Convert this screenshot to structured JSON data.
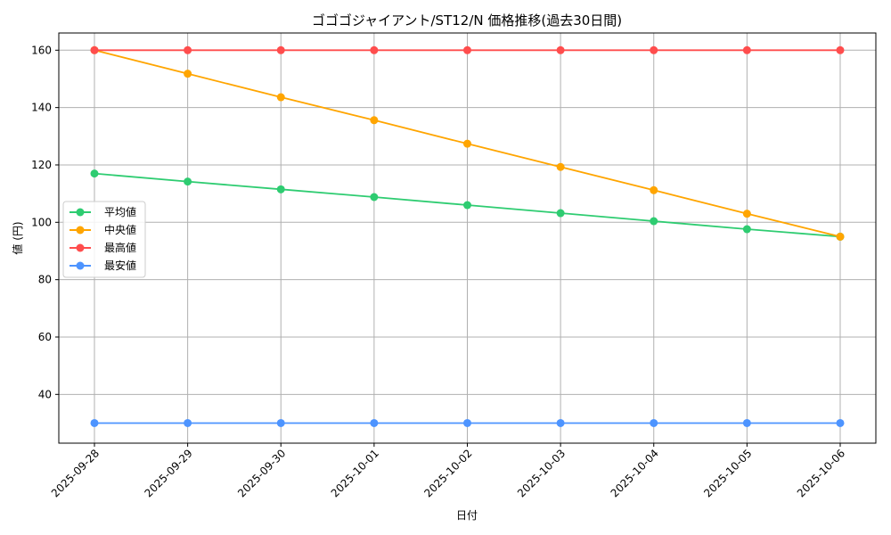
{
  "chart_data": {
    "type": "line",
    "title": "ゴゴゴジャイアント/ST12/N 価格推移(過去30日間)",
    "xlabel": "日付",
    "ylabel": "値 (円)",
    "categories": [
      "2025-09-28",
      "2025-09-29",
      "2025-09-30",
      "2025-10-01",
      "2025-10-02",
      "2025-10-03",
      "2025-10-04",
      "2025-10-05",
      "2025-10-06"
    ],
    "ylim": [
      23,
      166
    ],
    "yticks": [
      40,
      60,
      80,
      100,
      120,
      140,
      160
    ],
    "grid": true,
    "legend_position": "center-left",
    "series": [
      {
        "name": "平均値",
        "color": "#2ecc71",
        "values": [
          117,
          114.2,
          111.5,
          108.8,
          106,
          103.2,
          100.4,
          97.6,
          95
        ]
      },
      {
        "name": "中央値",
        "color": "#ffa500",
        "values": [
          160,
          151.8,
          143.6,
          135.6,
          127.4,
          119.3,
          111.2,
          103,
          95
        ]
      },
      {
        "name": "最高値",
        "color": "#ff4d4d",
        "values": [
          160,
          160,
          160,
          160,
          160,
          160,
          160,
          160,
          160
        ]
      },
      {
        "name": "最安値",
        "color": "#4d94ff",
        "values": [
          30,
          30,
          30,
          30,
          30,
          30,
          30,
          30,
          30
        ]
      }
    ]
  }
}
